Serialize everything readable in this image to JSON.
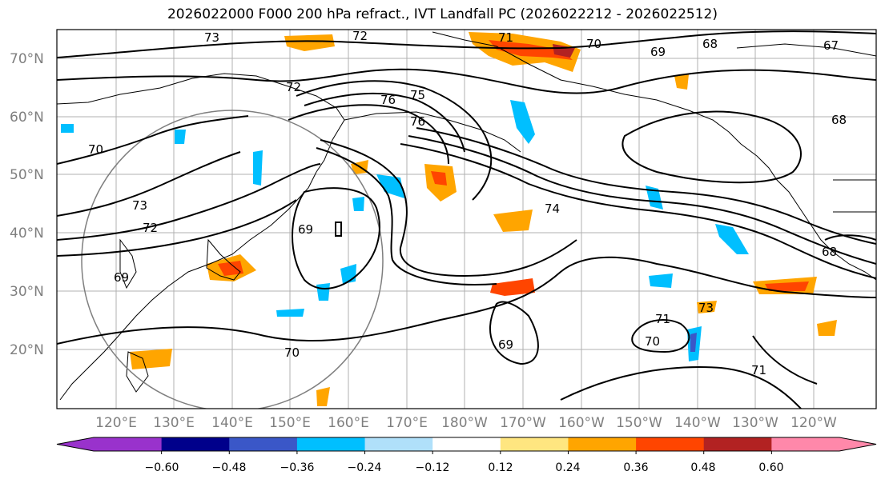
{
  "title": "2026022000 F000 200 hPa refract., IVT Landfall PC (2026022212 - 2026022512)",
  "lat_labels": [
    "70°N",
    "60°N",
    "50°N",
    "40°N",
    "30°N",
    "20°N"
  ],
  "lon_labels": [
    "120°E",
    "130°E",
    "140°E",
    "150°E",
    "160°E",
    "170°E",
    "180°W",
    "170°W",
    "160°W",
    "150°W",
    "140°W",
    "130°W",
    "120°W"
  ],
  "contour_labels": [
    "73",
    "72",
    "71",
    "70",
    "69",
    "68",
    "67",
    "72",
    "76",
    "75",
    "76",
    "70",
    "73",
    "72",
    "69",
    "69",
    "74",
    "68",
    "68",
    "70",
    "69",
    "71",
    "73",
    "70",
    "71"
  ],
  "colorbar": {
    "ticks": [
      "−0.60",
      "−0.48",
      "−0.36",
      "−0.24",
      "−0.12",
      "0.12",
      "0.24",
      "0.36",
      "0.48",
      "0.60"
    ],
    "colors": [
      "#9932cc",
      "#00008b",
      "#3a57c8",
      "#00bfff",
      "#b0e0fa",
      "#ffffff",
      "#ffe680",
      "#ffa500",
      "#ff4500",
      "#b22222",
      "#ff88aa"
    ],
    "extend": "both"
  }
}
